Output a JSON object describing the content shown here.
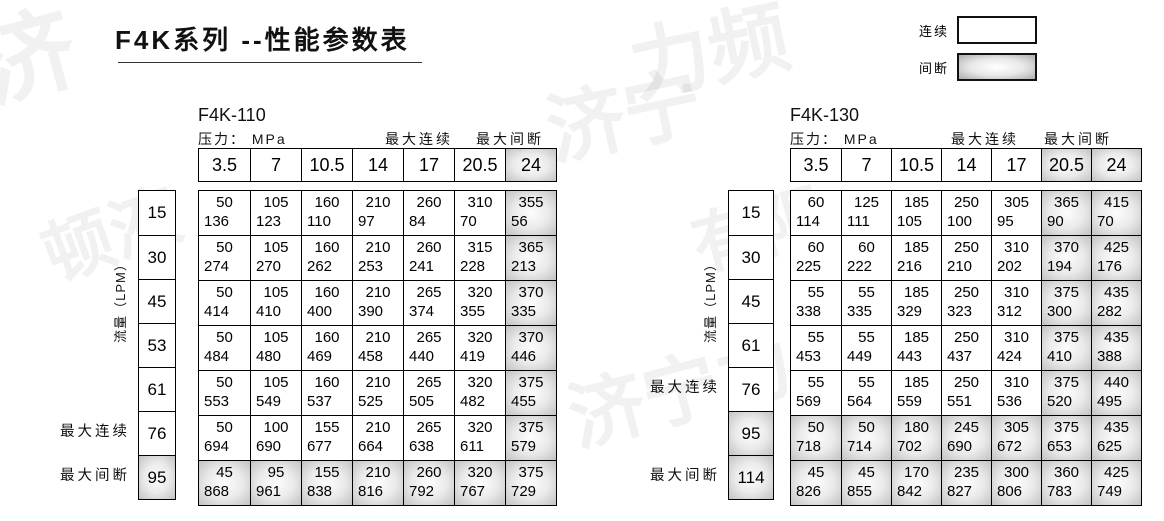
{
  "page": {
    "title": "F4K系列 --性能参数表"
  },
  "legend": {
    "continuous_label": "连续",
    "intermittent_label": "间断"
  },
  "labels": {
    "pressure": "压力： MPa",
    "max_continuous": "最大连续",
    "max_intermittent": "最大间断",
    "flow_axis": "流量（LPM）"
  },
  "watermarks": [
    "济",
    "顿液",
    "济宁",
    "力频",
    "液压有",
    "济宁力",
    "有限"
  ],
  "tables": [
    {
      "model": "F4K-110",
      "pressures": [
        "3.5",
        "7",
        "10.5",
        "14",
        "17",
        "20.5",
        "24"
      ],
      "intermittent_cols": [
        6
      ],
      "rows": [
        {
          "flow": "15",
          "top": [
            "50",
            "105",
            "160",
            "210",
            "260",
            "310",
            "355"
          ],
          "bottom": [
            "136",
            "123",
            "110",
            "97",
            "84",
            "70",
            "56"
          ]
        },
        {
          "flow": "30",
          "top": [
            "50",
            "105",
            "160",
            "210",
            "260",
            "315",
            "365"
          ],
          "bottom": [
            "274",
            "270",
            "262",
            "253",
            "241",
            "228",
            "213"
          ]
        },
        {
          "flow": "45",
          "top": [
            "50",
            "105",
            "160",
            "210",
            "265",
            "320",
            "370"
          ],
          "bottom": [
            "414",
            "410",
            "400",
            "390",
            "374",
            "355",
            "335"
          ]
        },
        {
          "flow": "53",
          "top": [
            "50",
            "105",
            "160",
            "210",
            "265",
            "320",
            "370"
          ],
          "bottom": [
            "484",
            "480",
            "469",
            "458",
            "440",
            "419",
            "446"
          ]
        },
        {
          "flow": "61",
          "top": [
            "50",
            "105",
            "160",
            "210",
            "265",
            "320",
            "375"
          ],
          "bottom": [
            "553",
            "549",
            "537",
            "525",
            "505",
            "482",
            "455"
          ]
        },
        {
          "flow": "76",
          "side_label": "最大连续",
          "top": [
            "50",
            "100",
            "155",
            "210",
            "265",
            "320",
            "375"
          ],
          "bottom": [
            "694",
            "690",
            "677",
            "664",
            "638",
            "611",
            "579"
          ]
        },
        {
          "flow": "95",
          "side_label": "最大间断",
          "shaded": true,
          "top": [
            "45",
            "95",
            "155",
            "210",
            "260",
            "320",
            "375"
          ],
          "bottom": [
            "868",
            "961",
            "838",
            "816",
            "792",
            "767",
            "729"
          ]
        }
      ]
    },
    {
      "model": "F4K-130",
      "pressures": [
        "3.5",
        "7",
        "10.5",
        "14",
        "17",
        "20.5",
        "24"
      ],
      "intermittent_cols": [
        5,
        6
      ],
      "rows": [
        {
          "flow": "15",
          "top": [
            "60",
            "125",
            "185",
            "250",
            "305",
            "365",
            "415"
          ],
          "bottom": [
            "114",
            "111",
            "105",
            "100",
            "95",
            "90",
            "70"
          ]
        },
        {
          "flow": "30",
          "top": [
            "60",
            "60",
            "185",
            "250",
            "310",
            "370",
            "425"
          ],
          "bottom": [
            "225",
            "222",
            "216",
            "210",
            "202",
            "194",
            "176"
          ]
        },
        {
          "flow": "45",
          "top": [
            "55",
            "55",
            "185",
            "250",
            "310",
            "375",
            "435"
          ],
          "bottom": [
            "338",
            "335",
            "329",
            "323",
            "312",
            "300",
            "282"
          ]
        },
        {
          "flow": "61",
          "top": [
            "55",
            "55",
            "185",
            "250",
            "310",
            "375",
            "435"
          ],
          "bottom": [
            "453",
            "449",
            "443",
            "437",
            "424",
            "410",
            "388"
          ]
        },
        {
          "flow": "76",
          "side_label": "最大连续",
          "top": [
            "55",
            "55",
            "185",
            "250",
            "310",
            "375",
            "440"
          ],
          "bottom": [
            "569",
            "564",
            "559",
            "551",
            "536",
            "520",
            "495"
          ]
        },
        {
          "flow": "95",
          "shaded": true,
          "top": [
            "50",
            "50",
            "180",
            "245",
            "305",
            "375",
            "435"
          ],
          "bottom": [
            "718",
            "714",
            "702",
            "690",
            "672",
            "653",
            "625"
          ]
        },
        {
          "flow": "114",
          "side_label": "最大间断",
          "shaded": true,
          "top": [
            "45",
            "45",
            "170",
            "235",
            "300",
            "360",
            "425"
          ],
          "bottom": [
            "826",
            "855",
            "842",
            "827",
            "806",
            "783",
            "749"
          ]
        }
      ]
    }
  ]
}
